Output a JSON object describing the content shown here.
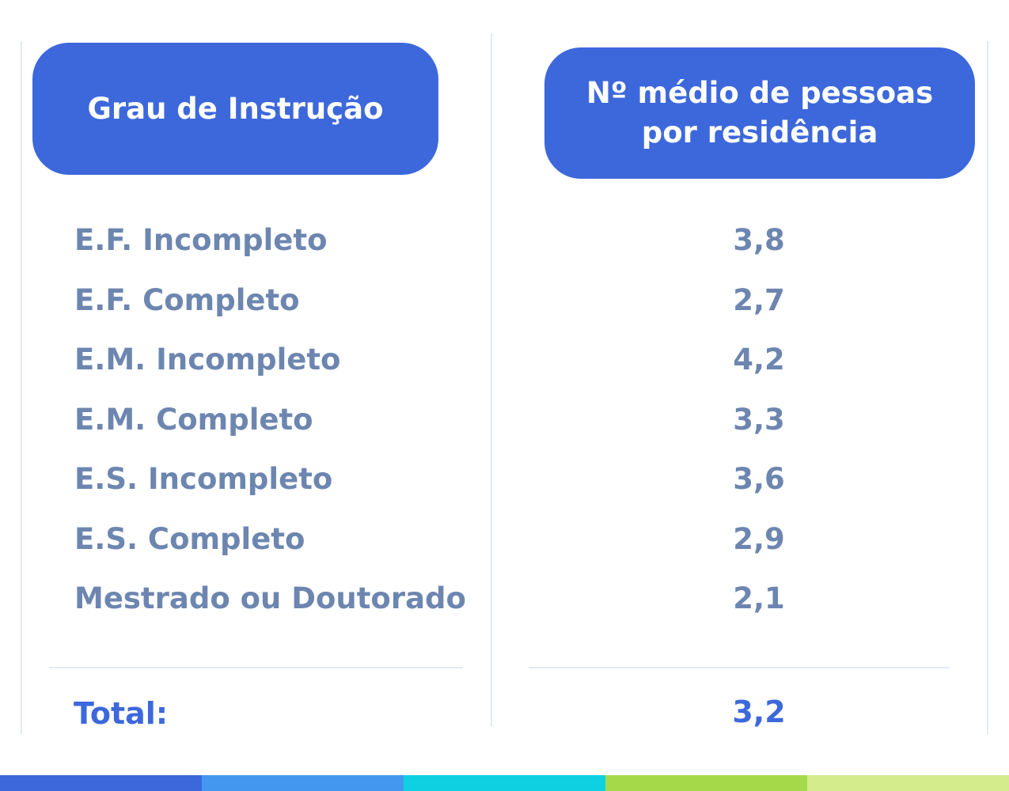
{
  "header": {
    "col1": "Grau de Instrução",
    "col2": "Nº médio de pessoas por residência"
  },
  "rows": [
    {
      "label": "E.F. Incompleto",
      "value": "3,8"
    },
    {
      "label": "E.F. Completo",
      "value": "2,7"
    },
    {
      "label": "E.M. Incompleto",
      "value": "4,2"
    },
    {
      "label": "E.M. Completo",
      "value": "3,3"
    },
    {
      "label": "E.S. Incompleto",
      "value": "3,6"
    },
    {
      "label": "E.S. Completo",
      "value": "2,9"
    },
    {
      "label": "Mestrado ou Doutorado",
      "value": "2,1"
    }
  ],
  "total": {
    "label": "Total:",
    "value": "3,2"
  },
  "colors": {
    "accent": "#3d68dc",
    "row_text": "#6d86b0",
    "divider": "#e4e9f3",
    "bar_segments": [
      "#3d68dc",
      "#4497ee",
      "#0fd0e0",
      "#a6d94a",
      "#d5ec8c"
    ]
  }
}
